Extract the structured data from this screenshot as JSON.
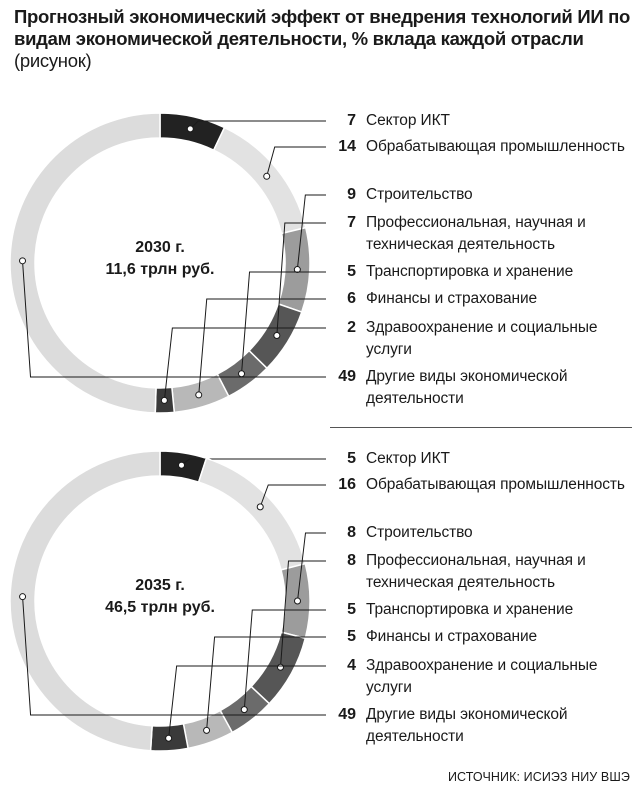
{
  "title": {
    "main": "Прогнозный экономический эффект от внедрения технологий ИИ по видам экономической деятельности, % вклада каждой отрасли",
    "note": "(рисунок)"
  },
  "colors": [
    "#222222",
    "#e2e2e2",
    "#9c9c9c",
    "#565656",
    "#6b6b6b",
    "#b8b8b8",
    "#3a3a3a",
    "#dcdcdc",
    "#7a7a7a"
  ],
  "chart_data": [
    {
      "type": "pie",
      "year_label": "2030 г.",
      "total_label": "11,6 трлн руб.",
      "series": [
        {
          "name": "Сектор ИКТ",
          "value": 7
        },
        {
          "name": "Обрабатывающая промышленность",
          "value": 14
        },
        {
          "name": "Строительство",
          "value": 9
        },
        {
          "name": "Профессиональная, научная и техническая деятельность",
          "value": 7
        },
        {
          "name": "Транспортировка и хранение",
          "value": 5
        },
        {
          "name": "Финансы и страхование",
          "value": 6
        },
        {
          "name": "Здравоохранение и социальные услуги",
          "value": 2
        },
        {
          "name": "Другие виды экономической деятельности",
          "value": 49
        }
      ]
    },
    {
      "type": "pie",
      "year_label": "2035 г.",
      "total_label": "46,5 трлн руб.",
      "series": [
        {
          "name": "Сектор ИКТ",
          "value": 5
        },
        {
          "name": "Обрабатывающая промышленность",
          "value": 16
        },
        {
          "name": "Строительство",
          "value": 8
        },
        {
          "name": "Профессиональная, научная и техническая деятельность",
          "value": 8
        },
        {
          "name": "Транспортировка и хранение",
          "value": 5
        },
        {
          "name": "Финансы и страхование",
          "value": 5
        },
        {
          "name": "Здравоохранение и социальные услуги",
          "value": 4
        },
        {
          "name": "Другие виды экономической деятельности",
          "value": 49
        }
      ]
    }
  ],
  "source": "ИСТОЧНИК: ИСИЭЗ НИУ ВШЭ"
}
